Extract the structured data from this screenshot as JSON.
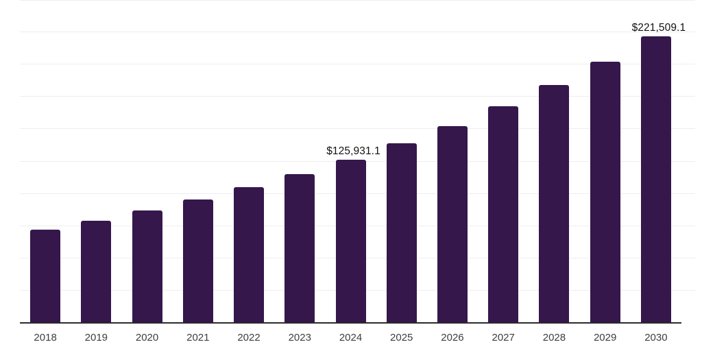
{
  "chart_data": {
    "type": "bar",
    "title": "",
    "xlabel": "",
    "ylabel": "",
    "categories": [
      "2018",
      "2019",
      "2020",
      "2021",
      "2022",
      "2023",
      "2024",
      "2025",
      "2026",
      "2027",
      "2028",
      "2029",
      "2030"
    ],
    "values": [
      71600,
      78700,
      86450,
      95000,
      104350,
      114600,
      125931.1,
      138350,
      152000,
      167000,
      183400,
      201500,
      221509.1
    ],
    "data_labels": [
      "",
      "",
      "",
      "",
      "",
      "",
      "$125,931.1",
      "",
      "",
      "",
      "",
      "",
      "$221,509.1"
    ],
    "ylim": [
      0,
      250000
    ],
    "gridline_step": 25000,
    "grid_on": true,
    "legend": "none",
    "colors": {
      "bar": "#35174b",
      "axis_line": "#2b2b2b",
      "gridline": "#eeeeee",
      "data_label_text": "#111111",
      "x_label_text": "#3d3d3d"
    }
  }
}
